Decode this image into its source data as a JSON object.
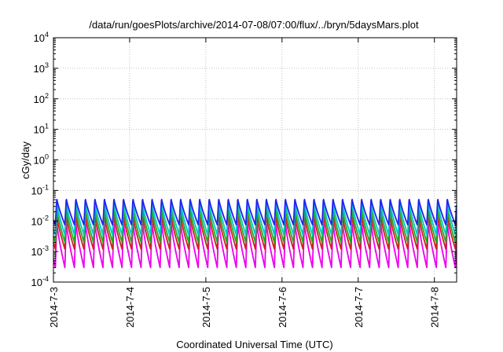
{
  "chart_data": {
    "type": "line",
    "title": "/data/run/goesPlots/archive/2014-07-08/07:00/flux/../bryn/5daysMars.plot",
    "xlabel": "Coordinated Universal Time (UTC)",
    "ylabel": "cGy/day",
    "yscale": "log",
    "ylim": [
      0.0001,
      10000
    ],
    "y_tick_labels": [
      {
        "base": "10",
        "exp": "-4"
      },
      {
        "base": "10",
        "exp": "-3"
      },
      {
        "base": "10",
        "exp": "-2"
      },
      {
        "base": "10",
        "exp": "-1"
      },
      {
        "base": "10",
        "exp": "0"
      },
      {
        "base": "10",
        "exp": "1"
      },
      {
        "base": "10",
        "exp": "2"
      },
      {
        "base": "10",
        "exp": "3"
      },
      {
        "base": "10",
        "exp": "4"
      }
    ],
    "xlim": [
      "2014-07-03 00:00",
      "2014-07-08 07:00"
    ],
    "x_tick_labels": [
      "2014-7-3",
      "2014-7-4",
      "2014-7-5",
      "2014-7-6",
      "2014-7-7",
      "2014-7-8"
    ],
    "grid": true,
    "oscillation_period_hours": 3,
    "series": [
      {
        "color": "#2222ee",
        "peak": 0.055,
        "trough": 0.0075
      },
      {
        "color": "#00c8c8",
        "peak": 0.04,
        "trough": 0.0035
      },
      {
        "color": "#22aa22",
        "peak": 0.025,
        "trough": 0.002
      },
      {
        "color": "#cc2222",
        "peak": 0.015,
        "trough": 0.0012
      },
      {
        "color": "#ee00ee",
        "peak": 0.009,
        "trough": 0.0003
      }
    ]
  }
}
